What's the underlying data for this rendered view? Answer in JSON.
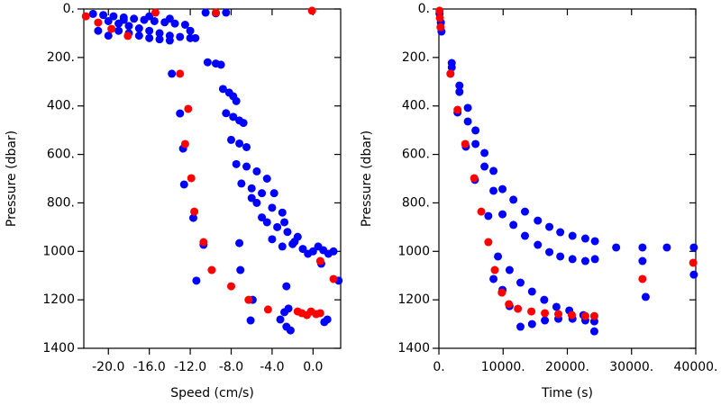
{
  "chart_data": [
    {
      "type": "scatter",
      "xlabel": "Speed (cm/s)",
      "ylabel": "Pressure (dbar)",
      "xlim": [
        -22.4,
        2.7
      ],
      "ylim": [
        0,
        1400
      ],
      "y_inverted": true,
      "xticks": [
        {
          "value": -20,
          "label": "-20.0"
        },
        {
          "value": -16,
          "label": "-16.0"
        },
        {
          "value": -12,
          "label": "-12.0"
        },
        {
          "value": -8,
          "label": "-8.0"
        },
        {
          "value": -4,
          "label": "-4.0"
        },
        {
          "value": 0,
          "label": "0.0"
        }
      ],
      "yticks": [
        {
          "value": 0,
          "label": "0."
        },
        {
          "value": 200,
          "label": "200."
        },
        {
          "value": 400,
          "label": "400."
        },
        {
          "value": 600,
          "label": "600."
        },
        {
          "value": 800,
          "label": "800."
        },
        1000,
        1200,
        1400
      ],
      "series": [
        {
          "color": "#0000ff",
          "x": [
            -21.5,
            -20.5,
            -19.5,
            -18.5,
            -17.5,
            -16.5,
            -15.5,
            -14.5,
            -13.5,
            -12.5,
            -20,
            -19,
            -18,
            -17,
            -16,
            -15,
            -14,
            -13,
            -12,
            -19,
            -18,
            -17,
            -16,
            -15,
            -14,
            -18.5,
            -16,
            -14,
            -12,
            -11.5,
            -21,
            -20,
            -10.5,
            -9.5,
            -8.5,
            -10.3,
            -9.5,
            -9,
            -8.8,
            -8.2,
            -7.8,
            -7.5,
            -8.5,
            -7.8,
            -7.2,
            -6.8,
            -8,
            -7.2,
            -6.5,
            -7.5,
            -6.5,
            -5.5,
            -7,
            -6,
            -5,
            -4.5,
            -5.5,
            -4,
            -3,
            -4.5,
            -3.5,
            -2.5,
            -1.5,
            -4,
            -2,
            -1,
            0,
            1,
            2,
            -3,
            -5,
            -6,
            -3.8,
            -2.8,
            -1.8,
            0.5,
            -0.5,
            1.5,
            -13.8,
            -13,
            -12.7,
            -12.6,
            -11.7,
            -10.7,
            -11.4,
            -7.2,
            -7.1,
            -5.9,
            -6.1,
            -2.6,
            -2.4,
            -3.2,
            -2.6,
            -2.2,
            -2.8,
            1.4,
            1.1,
            2.5,
            0.8
          ],
          "values": [
            20,
            25,
            30,
            35,
            40,
            45,
            50,
            55,
            60,
            65,
            50,
            60,
            70,
            80,
            90,
            100,
            110,
            115,
            120,
            90,
            100,
            110,
            120,
            125,
            130,
            45,
            30,
            40,
            90,
            120,
            90,
            110,
            15,
            18,
            15,
            220,
            225,
            230,
            330,
            345,
            360,
            380,
            430,
            445,
            460,
            470,
            540,
            555,
            570,
            640,
            650,
            670,
            720,
            740,
            760,
            700,
            800,
            820,
            840,
            880,
            900,
            920,
            940,
            950,
            970,
            990,
            1000,
            995,
            1000,
            980,
            860,
            780,
            760,
            880,
            960,
            980,
            1010,
            1010,
            267,
            431,
            576,
            724,
            862,
            973,
            1121,
            966,
            1077,
            1200,
            1285,
            1144,
            1236,
            1281,
            1311,
            1326,
            1251,
            1281,
            1292,
            1121,
            1051
          ]
        },
        {
          "color": "#ff0000",
          "x": [
            -22.2,
            -21,
            -19.7,
            -18.1,
            -15.4,
            -9.5,
            -0.1,
            -13,
            -12.2,
            -12.5,
            -11.9,
            -11.6,
            -10.7,
            -9.9,
            -8,
            -6.3,
            -4.4,
            0.7,
            2,
            -1.1,
            -0.6,
            -0.2,
            0.3,
            0.7,
            -1.5
          ],
          "values": [
            30,
            56,
            82,
            111,
            15,
            15,
            7,
            267,
            412,
            557,
            698,
            836,
            962,
            1077,
            1144,
            1200,
            1240,
            1040,
            1114,
            1255,
            1263,
            1248,
            1259,
            1255,
            1248
          ]
        }
      ]
    },
    {
      "type": "scatter",
      "xlabel": "Time (s)",
      "ylabel": "Pressure (dbar)",
      "xlim": [
        0,
        40000
      ],
      "ylim": [
        0,
        1400
      ],
      "y_inverted": true,
      "xticks": [
        {
          "value": 0,
          "label": "0."
        },
        {
          "value": 10000,
          "label": "10000."
        },
        {
          "value": 20000,
          "label": "20000."
        },
        {
          "value": 30000,
          "label": "30000."
        },
        {
          "value": 40000,
          "label": "40000."
        }
      ],
      "yticks": [
        {
          "value": 0,
          "label": "0."
        },
        {
          "value": 200,
          "label": "200."
        },
        {
          "value": 400,
          "label": "400."
        },
        {
          "value": 600,
          "label": "600."
        },
        {
          "value": 800,
          "label": "800."
        },
        1000,
        1200,
        1400
      ],
      "series": [
        {
          "color": "#0000ff",
          "x": [
            100,
            300,
            400,
            2000,
            2000,
            3200,
            3200,
            4500,
            4500,
            5700,
            5700,
            7100,
            7100,
            8500,
            8500,
            9900,
            9900,
            11600,
            11600,
            13400,
            13400,
            15400,
            15400,
            17200,
            17200,
            18900,
            18900,
            20800,
            20800,
            22800,
            22800,
            24300,
            24300,
            27600,
            31700,
            31700,
            35500,
            39700,
            39700,
            32200,
            1800,
            2900,
            4200,
            5600,
            7700,
            9200,
            11000,
            12700,
            14500,
            16400,
            18300,
            20300,
            22500,
            24200,
            8500,
            9900,
            11000,
            12700,
            14500,
            16500,
            18600,
            20800,
            22800,
            24200
          ],
          "values": [
            19,
            56,
            93,
            223,
            241,
            316,
            342,
            408,
            464,
            501,
            557,
            594,
            650,
            668,
            750,
            743,
            847,
            787,
            891,
            836,
            936,
            873,
            973,
            899,
            1003,
            921,
            1021,
            936,
            1032,
            947,
            1040,
            958,
            1032,
            984,
            984,
            1040,
            984,
            984,
            1096,
            1188,
            267,
            427,
            568,
            705,
            854,
            1021,
            1077,
            1129,
            1166,
            1200,
            1229,
            1244,
            1263,
            1289,
            1114,
            1159,
            1226,
            1311,
            1300,
            1285,
            1278,
            1278,
            1285,
            1330
          ]
        },
        {
          "color": "#ff0000",
          "x": [
            100,
            150,
            250,
            1800,
            2900,
            4100,
            5500,
            6600,
            7700,
            8700,
            9800,
            10900,
            12300,
            14400,
            16500,
            18600,
            20700,
            22800,
            24200,
            31700,
            39600
          ],
          "values": [
            7,
            37,
            75,
            267,
            416,
            557,
            698,
            836,
            962,
            1077,
            1170,
            1218,
            1237,
            1248,
            1255,
            1259,
            1263,
            1267,
            1267,
            1114,
            1047
          ]
        }
      ]
    }
  ]
}
